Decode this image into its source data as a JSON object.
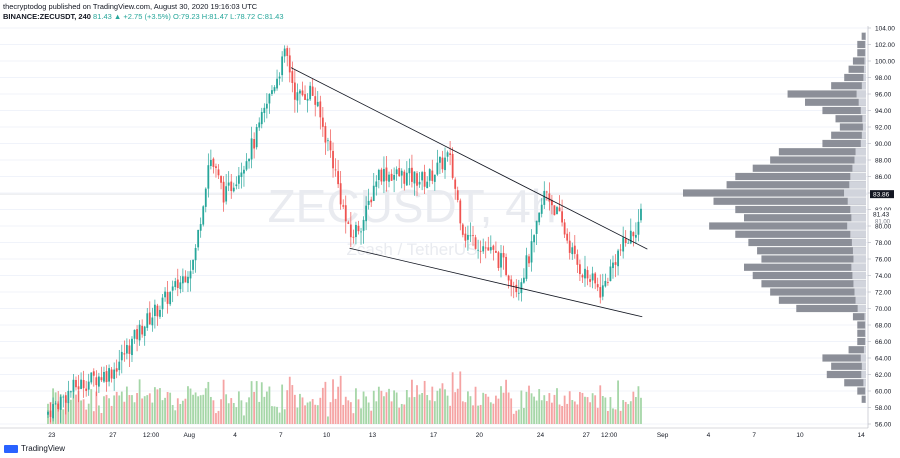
{
  "header": {
    "line1": "thecryptodog published on TradingView.com, August 30, 2020 19:16:03 UTC",
    "symbol": "BINANCE:ZECUSDT, 240",
    "quote": "81.43 ▲ +2.75 (+3.5%) O:79.23 H:81.47 L:78.72 C:81.43"
  },
  "watermark": {
    "main": "ZECUSDT, 4h",
    "sub": "Zcash / TetherUS"
  },
  "footer": {
    "brand": "TradingView"
  },
  "colors": {
    "up": "#26a69a",
    "down": "#ef5350",
    "price_label_bg": "#131722",
    "volume_profile": "#787b86"
  },
  "chart_data": {
    "type": "candlestick",
    "symbol": "ZECUSDT",
    "exchange": "BINANCE",
    "interval": "240",
    "last_price": "81.43",
    "price_labels": [
      "83.86",
      "81.43",
      "81.00"
    ],
    "yaxis_ticks": [
      "104.00",
      "102.00",
      "100.00",
      "98.00",
      "96.00",
      "94.00",
      "92.00",
      "90.00",
      "88.00",
      "86.00",
      "84.00",
      "82.00",
      "80.00",
      "78.00",
      "76.00",
      "74.00",
      "72.00",
      "70.00",
      "68.00",
      "66.00",
      "64.00",
      "62.00",
      "60.00",
      "58.00",
      "56.00"
    ],
    "ylim": [
      56,
      104
    ],
    "xaxis_ticks": [
      "23",
      "27",
      "12:00",
      "Aug",
      "4",
      "7",
      "10",
      "13",
      "17",
      "20",
      "24",
      "27",
      "12:00",
      "Sep",
      "4",
      "7",
      "10",
      "14"
    ],
    "anchors": [
      {
        "date": "Jul 22 18:00",
        "close": 57.5
      },
      {
        "date": "Jul 24 12:00",
        "close": 60.5
      },
      {
        "date": "Jul 27 00:00",
        "close": 62.5
      },
      {
        "date": "Jul 29 00:00",
        "close": 68.0
      },
      {
        "date": "Jul 31 08:00",
        "close": 73.0
      },
      {
        "date": "Aug 01 08:00",
        "close": 76.0
      },
      {
        "date": "Aug 02 08:00",
        "close": 88.5
      },
      {
        "date": "Aug 03 08:00",
        "close": 83.5
      },
      {
        "date": "Aug 05 08:00",
        "close": 90.5
      },
      {
        "date": "Aug 06 12:00",
        "close": 97.0
      },
      {
        "date": "Aug 07 08:00",
        "close": 101.0
      },
      {
        "date": "Aug 08 00:00",
        "close": 95.5
      },
      {
        "date": "Aug 09 00:00",
        "close": 96.5
      },
      {
        "date": "Aug 10 08:00",
        "close": 88.5
      },
      {
        "date": "Aug 11 12:00",
        "close": 78.5
      },
      {
        "date": "Aug 12 12:00",
        "close": 81.0
      },
      {
        "date": "Aug 13 08:00",
        "close": 86.5
      },
      {
        "date": "Aug 15 08:00",
        "close": 86.0
      },
      {
        "date": "Aug 16 12:00",
        "close": 85.5
      },
      {
        "date": "Aug 18 00:00",
        "close": 88.5
      },
      {
        "date": "Aug 19 00:00",
        "close": 79.0
      },
      {
        "date": "Aug 20 08:00",
        "close": 77.5
      },
      {
        "date": "Aug 21 12:00",
        "close": 75.5
      },
      {
        "date": "Aug 22 12:00",
        "close": 72.5
      },
      {
        "date": "Aug 23 12:00",
        "close": 77.5
      },
      {
        "date": "Aug 24 08:00",
        "close": 84.5
      },
      {
        "date": "Aug 25 08:00",
        "close": 80.5
      },
      {
        "date": "Aug 26 08:00",
        "close": 75.5
      },
      {
        "date": "Aug 27 00:00",
        "close": 74.0
      },
      {
        "date": "Aug 28 00:00",
        "close": 72.0
      },
      {
        "date": "Aug 29 00:00",
        "close": 76.5
      },
      {
        "date": "Aug 30 00:00",
        "close": 79.0
      },
      {
        "date": "Aug 30 16:00",
        "close": 81.43
      }
    ],
    "trendlines": [
      {
        "name": "upper",
        "from": {
          "date": "Aug 07 16:00",
          "price": 99.2
        },
        "to": {
          "date": "Aug 31 00:00",
          "price": 77.2
        }
      },
      {
        "name": "lower",
        "from": {
          "date": "Aug 11 12:00",
          "price": 77.3
        },
        "to": {
          "date": "Aug 30 16:00",
          "price": 69.0
        }
      }
    ],
    "volume_profile": [
      {
        "price": 103,
        "volume": 1
      },
      {
        "price": 102,
        "volume": 2
      },
      {
        "price": 101,
        "volume": 2
      },
      {
        "price": 100,
        "volume": 3
      },
      {
        "price": 99,
        "volume": 4
      },
      {
        "price": 98,
        "volume": 5
      },
      {
        "price": 97,
        "volume": 8
      },
      {
        "price": 96,
        "volume": 18
      },
      {
        "price": 95,
        "volume": 14
      },
      {
        "price": 94,
        "volume": 10
      },
      {
        "price": 93,
        "volume": 7
      },
      {
        "price": 92,
        "volume": 6
      },
      {
        "price": 91,
        "volume": 8
      },
      {
        "price": 90,
        "volume": 10
      },
      {
        "price": 89,
        "volume": 20
      },
      {
        "price": 88,
        "volume": 22
      },
      {
        "price": 87,
        "volume": 26
      },
      {
        "price": 86,
        "volume": 30
      },
      {
        "price": 85,
        "volume": 32
      },
      {
        "price": 84,
        "volume": 42
      },
      {
        "price": 83,
        "volume": 35
      },
      {
        "price": 82,
        "volume": 30
      },
      {
        "price": 81,
        "volume": 28
      },
      {
        "price": 80,
        "volume": 36
      },
      {
        "price": 79,
        "volume": 30
      },
      {
        "price": 78,
        "volume": 27
      },
      {
        "price": 77,
        "volume": 25
      },
      {
        "price": 76,
        "volume": 24
      },
      {
        "price": 75,
        "volume": 28
      },
      {
        "price": 74,
        "volume": 26
      },
      {
        "price": 73,
        "volume": 24
      },
      {
        "price": 72,
        "volume": 22
      },
      {
        "price": 71,
        "volume": 20
      },
      {
        "price": 70,
        "volume": 16
      },
      {
        "price": 69,
        "volume": 3
      },
      {
        "price": 68,
        "volume": 2
      },
      {
        "price": 67,
        "volume": 2
      },
      {
        "price": 66,
        "volume": 2
      },
      {
        "price": 65,
        "volume": 4
      },
      {
        "price": 64,
        "volume": 10
      },
      {
        "price": 63,
        "volume": 8
      },
      {
        "price": 62,
        "volume": 9
      },
      {
        "price": 61,
        "volume": 5
      },
      {
        "price": 60,
        "volume": 2
      },
      {
        "price": 59,
        "volume": 1
      }
    ]
  }
}
